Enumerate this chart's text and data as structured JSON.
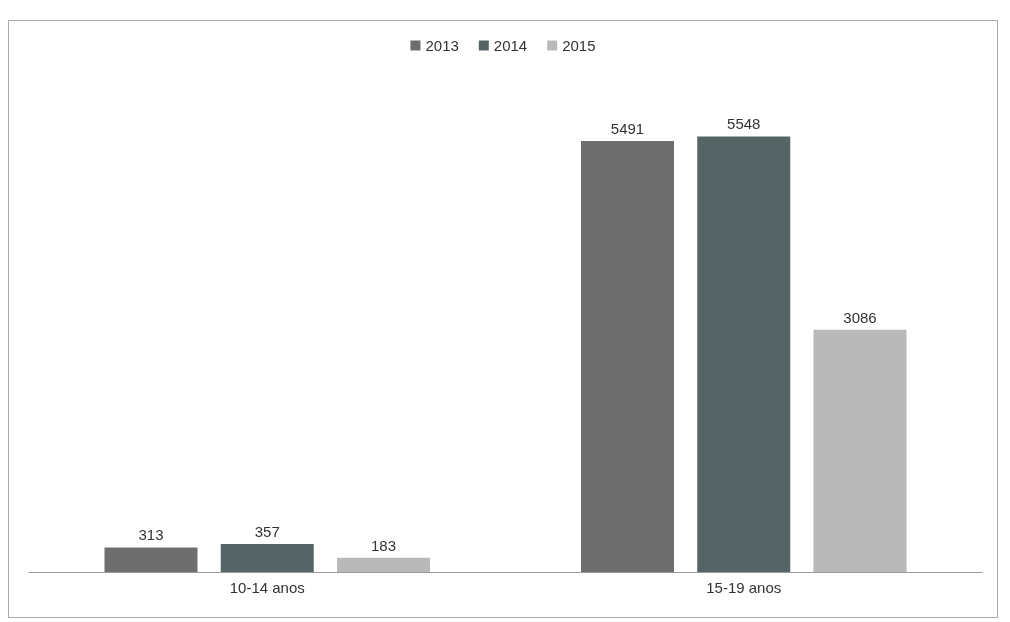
{
  "chart_data": {
    "type": "bar",
    "categories": [
      "10-14 anos",
      "15-19 anos"
    ],
    "series": [
      {
        "name": "2013",
        "color": "#6e6e6e",
        "values": [
          313,
          5491
        ]
      },
      {
        "name": "2014",
        "color": "#556565",
        "values": [
          357,
          5548
        ]
      },
      {
        "name": "2015",
        "color": "#b9b9b9",
        "values": [
          183,
          3086
        ]
      }
    ],
    "data_labels": true,
    "legend": "top"
  }
}
